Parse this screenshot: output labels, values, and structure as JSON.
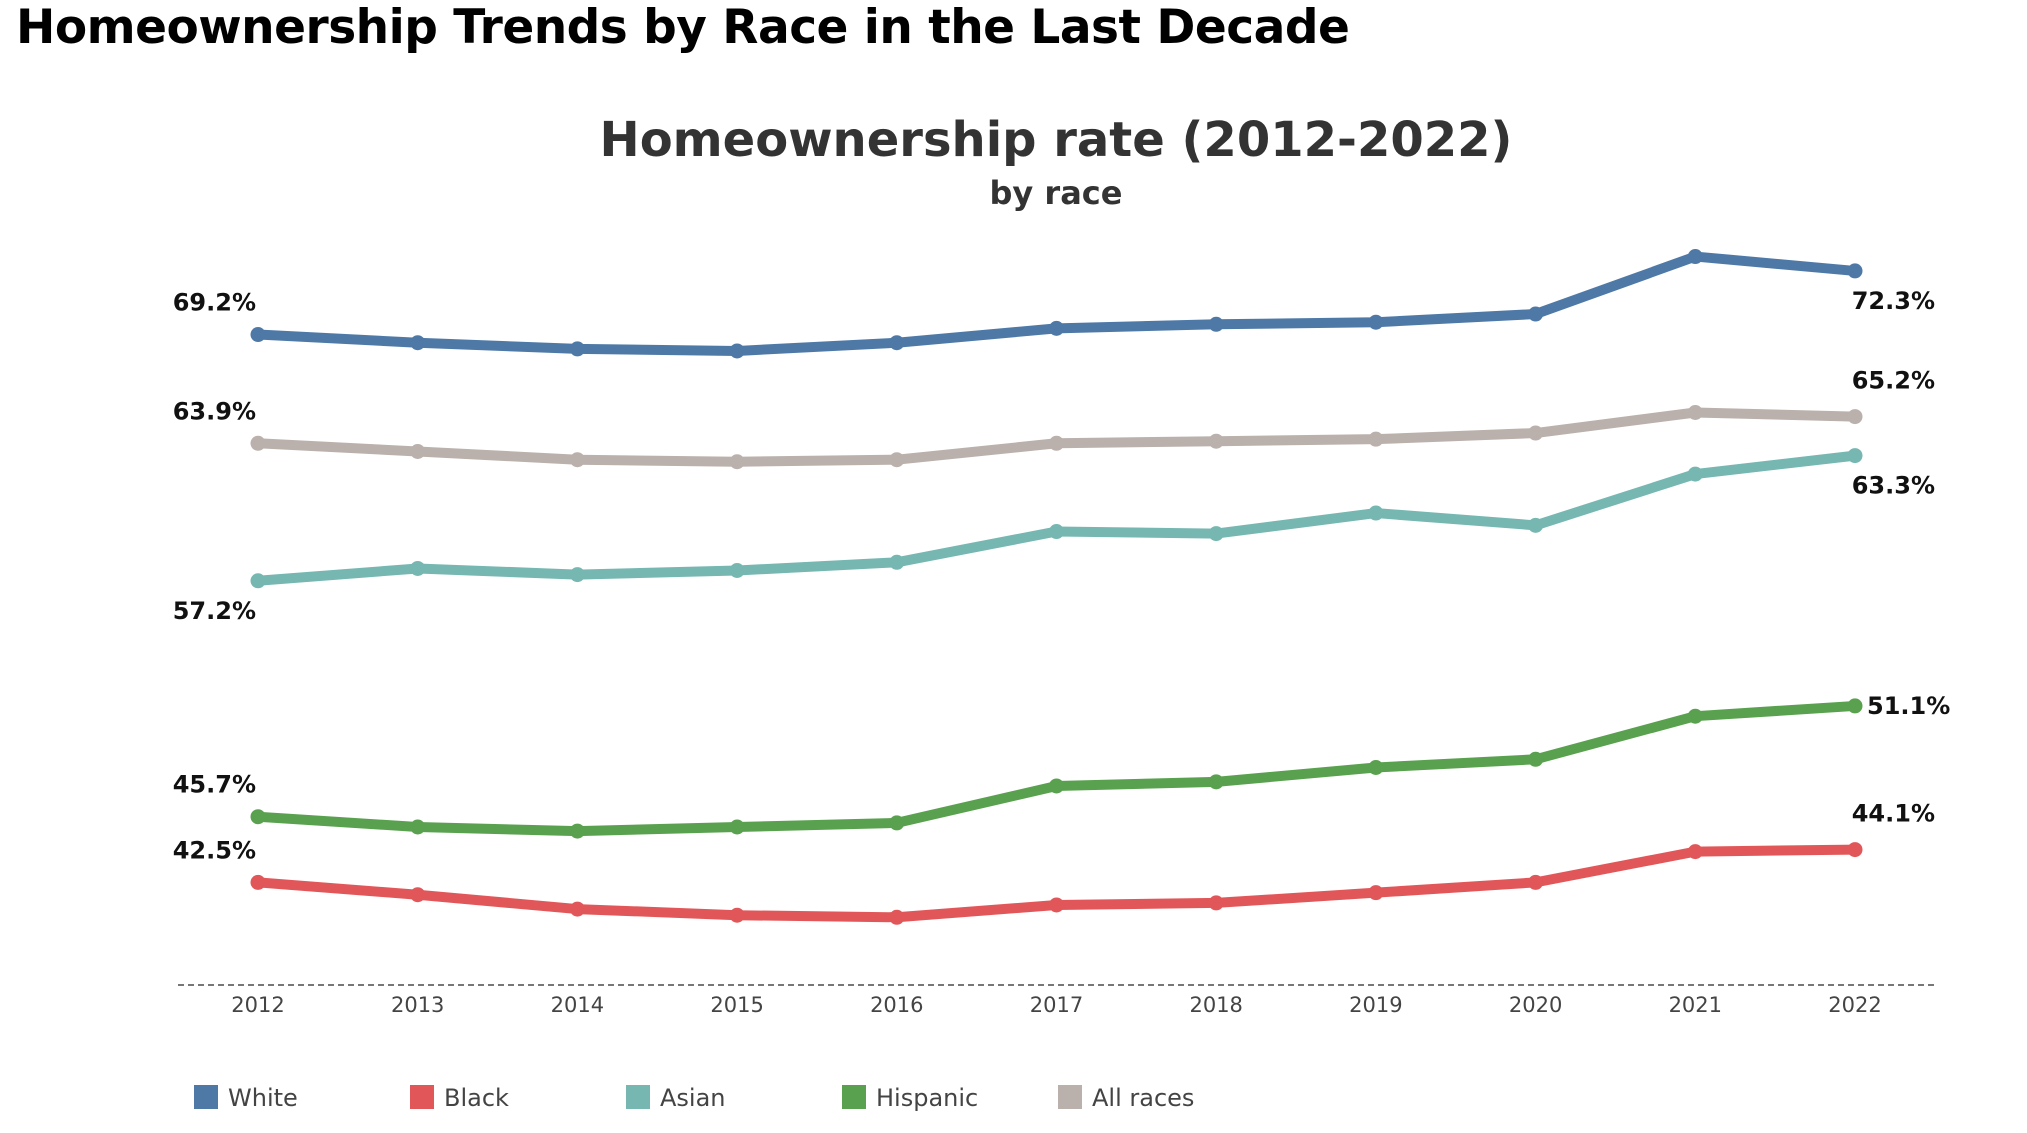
{
  "page": {
    "title": "Homeownership Trends by Race in the Last Decade"
  },
  "chart_data": {
    "type": "line",
    "title": "Homeownership rate (2012-2022)",
    "subtitle": "by race",
    "xlabel": "",
    "ylabel": "",
    "x": [
      "2012",
      "2013",
      "2014",
      "2015",
      "2016",
      "2017",
      "2018",
      "2019",
      "2020",
      "2021",
      "2022"
    ],
    "ylim": [
      37.5,
      76
    ],
    "grid": false,
    "baseline": "dashed",
    "legend_position": "bottom-left",
    "series": [
      {
        "name": "White",
        "color": "#4e79a7",
        "values": [
          69.2,
          68.8,
          68.5,
          68.4,
          68.8,
          69.5,
          69.7,
          69.8,
          70.2,
          73.0,
          72.3
        ],
        "labels": [
          {
            "index": 0,
            "text": "69.2%",
            "position": "above-left"
          },
          {
            "index": 10,
            "text": "72.3%",
            "position": "below-right"
          }
        ]
      },
      {
        "name": "Black",
        "color": "#e15759",
        "values": [
          42.5,
          41.9,
          41.2,
          40.9,
          40.8,
          41.4,
          41.5,
          42.0,
          42.5,
          44.0,
          44.1
        ],
        "labels": [
          {
            "index": 0,
            "text": "42.5%",
            "position": "above-left"
          },
          {
            "index": 10,
            "text": "44.1%",
            "position": "above-right"
          }
        ]
      },
      {
        "name": "Asian",
        "color": "#76b7b2",
        "values": [
          57.2,
          57.8,
          57.5,
          57.7,
          58.1,
          59.6,
          59.5,
          60.5,
          59.9,
          62.4,
          63.3
        ],
        "labels": [
          {
            "index": 0,
            "text": "57.2%",
            "position": "below-left"
          },
          {
            "index": 10,
            "text": "63.3%",
            "position": "below-right"
          }
        ]
      },
      {
        "name": "Hispanic",
        "color": "#59a14f",
        "values": [
          45.7,
          45.2,
          45.0,
          45.2,
          45.4,
          47.2,
          47.4,
          48.1,
          48.5,
          50.6,
          51.1
        ],
        "labels": [
          {
            "index": 0,
            "text": "45.7%",
            "position": "above-left"
          },
          {
            "index": 10,
            "text": "51.1%",
            "position": "right"
          }
        ]
      },
      {
        "name": "All races",
        "color": "#bab0ac",
        "values": [
          63.9,
          63.5,
          63.1,
          63.0,
          63.1,
          63.9,
          64.0,
          64.1,
          64.4,
          65.4,
          65.2
        ],
        "labels": [
          {
            "index": 0,
            "text": "63.9%",
            "position": "above-left"
          },
          {
            "index": 10,
            "text": "65.2%",
            "position": "above-right"
          }
        ]
      }
    ]
  }
}
